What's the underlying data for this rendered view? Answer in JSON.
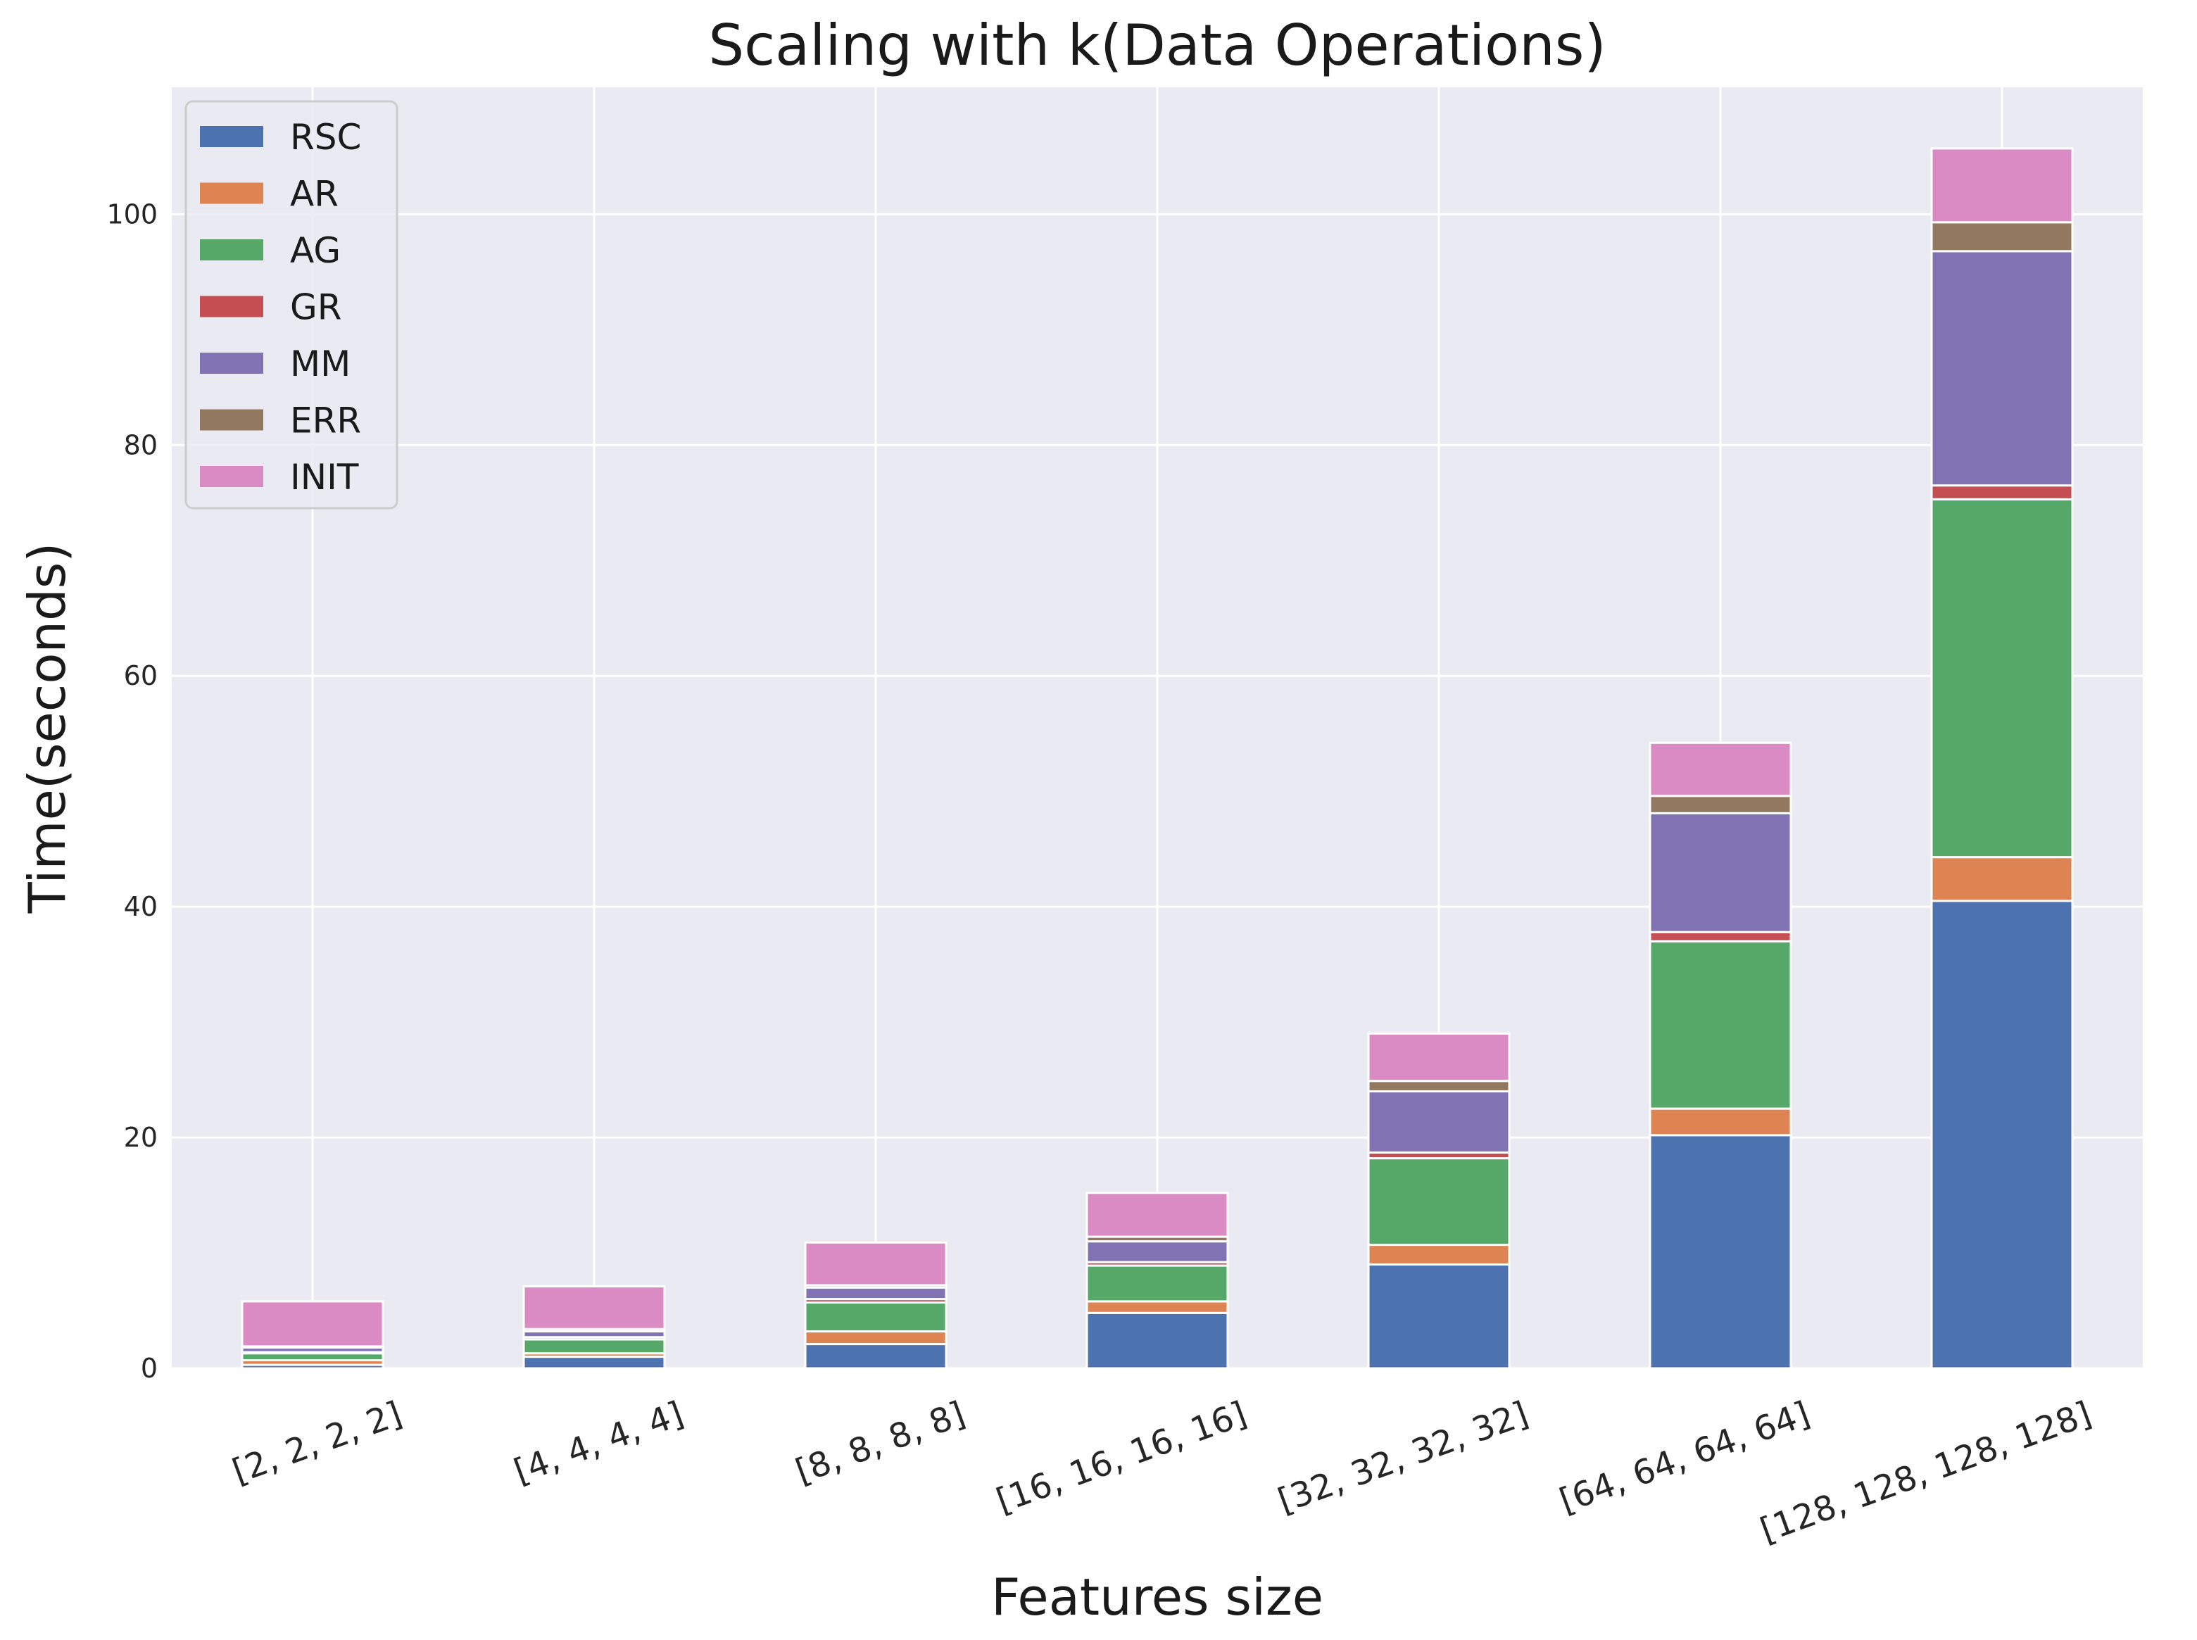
{
  "chart_data": {
    "type": "bar",
    "stacked": true,
    "title": "Scaling with k(Data Operations)",
    "xlabel": "Features size",
    "ylabel": "Time(seconds)",
    "ylim": [
      0,
      111
    ],
    "yticks": [
      0,
      20,
      40,
      60,
      80,
      100
    ],
    "grid": true,
    "legend_position": "top-left",
    "categories": [
      "[2, 2, 2, 2]",
      "[4, 4, 4, 4]",
      "[8, 8, 8, 8]",
      "[16, 16, 16, 16]",
      "[32, 32, 32, 32]",
      "[64, 64, 64, 64]",
      "[128, 128, 128, 128]"
    ],
    "series": [
      {
        "name": "RSC",
        "color": "#4c72b0",
        "values": [
          0.3,
          1.0,
          2.1,
          4.8,
          9.0,
          20.2,
          40.5
        ]
      },
      {
        "name": "AR",
        "color": "#dd8452",
        "values": [
          0.4,
          0.3,
          1.1,
          1.0,
          1.7,
          2.3,
          3.8
        ]
      },
      {
        "name": "AG",
        "color": "#55a868",
        "values": [
          0.6,
          1.2,
          2.5,
          3.1,
          7.5,
          14.5,
          31.0
        ]
      },
      {
        "name": "GR",
        "color": "#c44e52",
        "values": [
          0.1,
          0.2,
          0.3,
          0.3,
          0.5,
          0.8,
          1.2
        ]
      },
      {
        "name": "MM",
        "color": "#8172b3",
        "values": [
          0.4,
          0.5,
          1.0,
          1.8,
          5.3,
          10.3,
          20.3
        ]
      },
      {
        "name": "ERR",
        "color": "#937860",
        "values": [
          0.1,
          0.2,
          0.2,
          0.4,
          0.9,
          1.5,
          2.5
        ]
      },
      {
        "name": "INIT",
        "color": "#da8bc3",
        "values": [
          3.9,
          3.7,
          3.7,
          3.8,
          4.1,
          4.6,
          6.4
        ]
      }
    ]
  },
  "colors": {
    "plot_background": "#eaeaf2",
    "grid": "#ffffff"
  }
}
